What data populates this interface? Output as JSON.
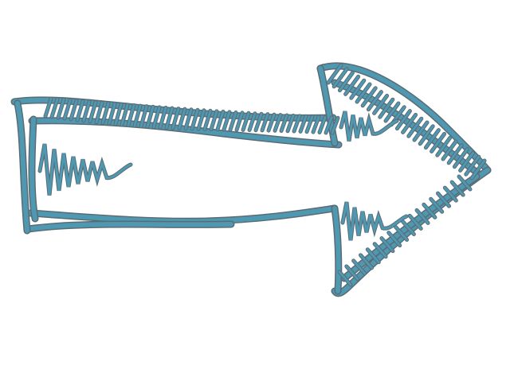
{
  "image": {
    "subject": "arrow",
    "direction": "right",
    "style": "hand-drawn sketch with hatching",
    "colors": {
      "background": "#ffffff",
      "ink": "#4f98b2",
      "outline": "#5b6b73"
    }
  }
}
